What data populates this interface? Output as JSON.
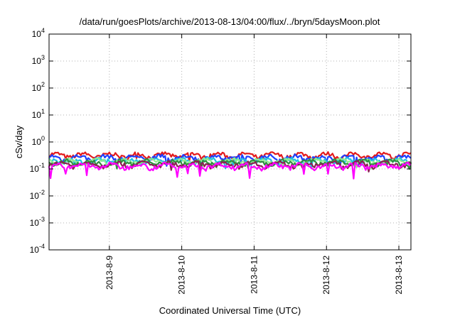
{
  "chart_data": {
    "type": "line",
    "title": "/data/run/goesPlots/archive/2013-08-13/04:00/flux/../bryn/5daysMoon.plot",
    "xlabel": "Coordinated Universal Time (UTC)",
    "ylabel": "cSv/day",
    "yscale": "log",
    "ylim": [
      0.0001,
      10000
    ],
    "y_ticks": [
      {
        "value": 0.0001,
        "base": "10",
        "exp": "-4"
      },
      {
        "value": 0.001,
        "base": "10",
        "exp": "-3"
      },
      {
        "value": 0.01,
        "base": "10",
        "exp": "-2"
      },
      {
        "value": 0.1,
        "base": "10",
        "exp": "-1"
      },
      {
        "value": 1,
        "base": "10",
        "exp": "0"
      },
      {
        "value": 10,
        "base": "10",
        "exp": "1"
      },
      {
        "value": 100,
        "base": "10",
        "exp": "2"
      },
      {
        "value": 1000,
        "base": "10",
        "exp": "3"
      },
      {
        "value": 10000,
        "base": "10",
        "exp": "4"
      }
    ],
    "xlim": [
      "2013-08-08 04:00",
      "2013-08-13 04:00"
    ],
    "x_ticks": [
      {
        "value": "2013-08-09",
        "label": "2013-8-9"
      },
      {
        "value": "2013-08-10",
        "label": "2013-8-10"
      },
      {
        "value": "2013-08-11",
        "label": "2013-8-11"
      },
      {
        "value": "2013-08-12",
        "label": "2013-8-12"
      },
      {
        "value": "2013-08-13",
        "label": "2013-8-13"
      }
    ],
    "grid": true,
    "legend": "none",
    "series": [
      {
        "color": "#e31a1c",
        "base": 0.32,
        "spike_base": 0.26
      },
      {
        "color": "#1f3fff",
        "base": 0.26,
        "spike_base": 0.2
      },
      {
        "color": "#20c0e0",
        "base": 0.2,
        "spike_base": 0.16
      },
      {
        "color": "#90ee90",
        "base": 0.19,
        "spike_base": 0.15
      },
      {
        "color": "#2f8f3f",
        "base": 0.175,
        "spike_base": 0.14
      },
      {
        "color": "#8b2252",
        "base": 0.15,
        "spike_base": 0.12
      },
      {
        "color": "#ff00ff",
        "base": 0.13,
        "spike_base": 0.07
      }
    ]
  }
}
